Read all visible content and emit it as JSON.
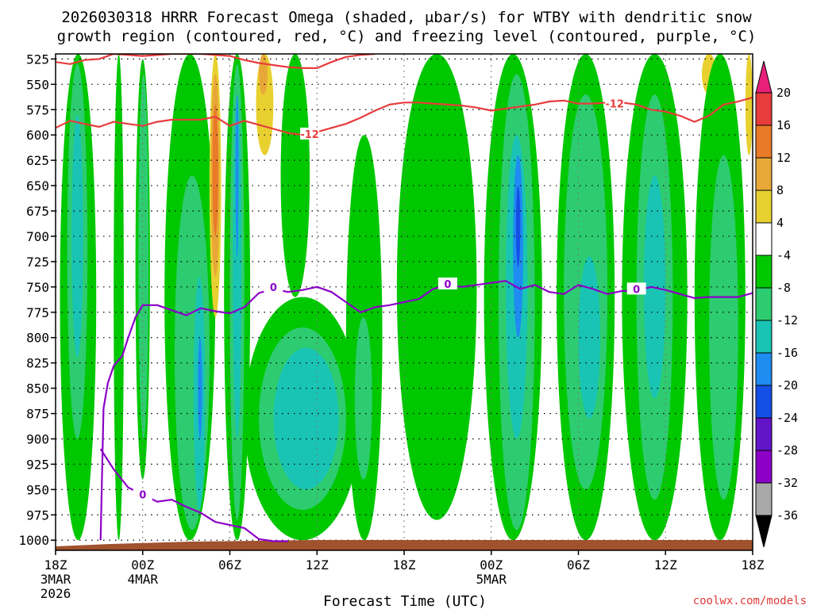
{
  "chart_data": {
    "type": "contour",
    "title_line1": "2026030318 HRRR Forecast Omega (shaded, μbar/s) for WTBY with dendritic snow",
    "title_line2": "growth region (contoured, red, °C) and freezing level (contoured, purple, °C)",
    "xlabel": "Forecast Time (UTC)",
    "credit": "coolwx.com/models",
    "y_axis": {
      "units": "hPa",
      "ticks": [
        525,
        550,
        575,
        600,
        625,
        650,
        675,
        700,
        725,
        750,
        775,
        800,
        825,
        850,
        875,
        900,
        925,
        950,
        975,
        1000
      ],
      "range": [
        520,
        1010
      ]
    },
    "x_axis": {
      "range_hours": [
        0,
        48
      ],
      "ticks": [
        {
          "hour": 0,
          "label": "18Z",
          "sub1": "3MAR",
          "sub2": "2026"
        },
        {
          "hour": 6,
          "label": "00Z",
          "sub1": "4MAR",
          "sub2": ""
        },
        {
          "hour": 12,
          "label": "06Z",
          "sub1": "",
          "sub2": ""
        },
        {
          "hour": 18,
          "label": "12Z",
          "sub1": "",
          "sub2": ""
        },
        {
          "hour": 24,
          "label": "18Z",
          "sub1": "",
          "sub2": ""
        },
        {
          "hour": 30,
          "label": "00Z",
          "sub1": "5MAR",
          "sub2": ""
        },
        {
          "hour": 36,
          "label": "06Z",
          "sub1": "",
          "sub2": ""
        },
        {
          "hour": 42,
          "label": "12Z",
          "sub1": "",
          "sub2": ""
        },
        {
          "hour": 48,
          "label": "18Z",
          "sub1": "",
          "sub2": ""
        }
      ]
    },
    "colorbar": {
      "labels": [
        "20",
        "16",
        "12",
        "8",
        "4",
        "-4",
        "-8",
        "-12",
        "-16",
        "-20",
        "-24",
        "-28",
        "-32",
        "-36"
      ],
      "colors": [
        "#e8207a",
        "#e83c3c",
        "#e87a28",
        "#e8a838",
        "#e8d030",
        "#ffffff",
        "#00c800",
        "#2ecc70",
        "#19c4b4",
        "#1e8cf0",
        "#1450e6",
        "#6414c8",
        "#8c00c8",
        "#a8a8a8",
        "#000000"
      ]
    },
    "contour_labels": {
      "dgz_top_label": "-12",
      "dgz_bottom_label": "-12",
      "freezing_label": "0"
    },
    "dgz_upper_contour": [
      [
        0,
        528
      ],
      [
        1,
        530
      ],
      [
        2,
        526
      ],
      [
        3,
        525
      ],
      [
        4,
        520
      ],
      [
        5,
        521
      ],
      [
        6,
        522
      ],
      [
        8,
        520
      ],
      [
        10,
        520
      ],
      [
        12,
        522
      ],
      [
        13,
        526
      ],
      [
        14,
        529
      ],
      [
        15,
        531
      ],
      [
        16,
        533
      ],
      [
        17,
        534
      ],
      [
        18,
        534
      ],
      [
        19,
        528
      ],
      [
        20,
        523
      ],
      [
        21,
        521
      ],
      [
        22,
        520
      ]
    ],
    "dgz_lower_contour": [
      [
        0,
        593
      ],
      [
        1,
        586
      ],
      [
        2,
        589
      ],
      [
        3,
        592
      ],
      [
        4,
        587
      ],
      [
        5,
        589
      ],
      [
        6,
        591
      ],
      [
        7,
        587
      ],
      [
        8,
        585
      ],
      [
        10,
        585
      ],
      [
        11,
        582
      ],
      [
        12,
        591
      ],
      [
        13,
        586
      ],
      [
        14,
        590
      ],
      [
        15,
        594
      ],
      [
        16,
        598
      ],
      [
        17,
        600
      ],
      [
        18,
        597
      ],
      [
        19,
        593
      ],
      [
        20,
        589
      ],
      [
        21,
        583
      ],
      [
        22,
        576
      ],
      [
        23,
        570
      ],
      [
        24,
        568
      ],
      [
        25,
        568
      ],
      [
        26,
        569
      ],
      [
        27,
        570
      ],
      [
        28,
        571
      ],
      [
        29,
        573
      ],
      [
        30,
        576
      ],
      [
        31,
        574
      ],
      [
        32,
        572
      ],
      [
        33,
        570
      ],
      [
        34,
        567
      ],
      [
        35,
        566
      ],
      [
        36,
        569
      ],
      [
        37,
        569
      ],
      [
        38,
        568
      ],
      [
        39,
        568
      ],
      [
        40,
        570
      ],
      [
        41,
        575
      ],
      [
        42,
        577
      ],
      [
        43,
        581
      ],
      [
        44,
        587
      ],
      [
        45,
        581
      ],
      [
        46,
        570
      ],
      [
        47,
        567
      ],
      [
        48,
        563
      ]
    ],
    "freezing_level_contour": [
      [
        3.1,
        1000
      ],
      [
        3.3,
        870
      ],
      [
        3.6,
        845
      ],
      [
        4.0,
        828
      ],
      [
        4.6,
        818
      ],
      [
        5.0,
        800
      ],
      [
        5.5,
        780
      ],
      [
        6.0,
        768
      ],
      [
        7.0,
        768
      ],
      [
        8.0,
        773
      ],
      [
        9.0,
        778
      ],
      [
        10.0,
        771
      ],
      [
        11.0,
        774
      ],
      [
        12.0,
        776
      ],
      [
        13.0,
        770
      ],
      [
        14.0,
        756
      ],
      [
        15.0,
        752
      ],
      [
        16.0,
        755
      ],
      [
        17.0,
        753
      ],
      [
        18.0,
        750
      ],
      [
        19.0,
        755
      ],
      [
        20.0,
        765
      ],
      [
        21.0,
        775
      ],
      [
        22.0,
        770
      ],
      [
        23.0,
        768
      ],
      [
        24.0,
        765
      ],
      [
        25.0,
        762
      ],
      [
        26.0,
        752
      ],
      [
        27.0,
        748
      ],
      [
        28.0,
        750
      ],
      [
        29.0,
        748
      ],
      [
        30.0,
        746
      ],
      [
        31.0,
        744
      ],
      [
        32.0,
        752
      ],
      [
        33.0,
        748
      ],
      [
        34.0,
        755
      ],
      [
        35.0,
        757
      ],
      [
        36.0,
        748
      ],
      [
        37.0,
        752
      ],
      [
        38.0,
        757
      ],
      [
        39.0,
        754
      ],
      [
        40.0,
        754
      ],
      [
        41.0,
        750
      ],
      [
        42.0,
        753
      ],
      [
        43.0,
        757
      ],
      [
        44.0,
        761
      ],
      [
        45.0,
        760
      ],
      [
        46.0,
        760
      ],
      [
        47.0,
        760
      ],
      [
        48.0,
        756
      ]
    ],
    "freezing_level_low_branch": [
      [
        3.1,
        910
      ],
      [
        4.0,
        930
      ],
      [
        5.0,
        948
      ],
      [
        6.0,
        955
      ],
      [
        7.0,
        962
      ],
      [
        8.0,
        960
      ],
      [
        9.0,
        967
      ],
      [
        10.0,
        973
      ],
      [
        11.0,
        982
      ],
      [
        12.0,
        985
      ],
      [
        13.0,
        988
      ],
      [
        14.0,
        999
      ],
      [
        15.0,
        1001
      ],
      [
        16.0,
        1001
      ]
    ],
    "omega_regions": [
      {
        "level": "-4",
        "hours": [
          0.3,
          2.8
        ],
        "p": [
          520,
          1000
        ]
      },
      {
        "level": "-8",
        "hours": [
          0.8,
          2.2
        ],
        "p": [
          530,
          900
        ]
      },
      {
        "level": "-12",
        "hours": [
          1.1,
          1.9
        ],
        "p": [
          580,
          820
        ]
      },
      {
        "level": "-4",
        "hours": [
          4.0,
          4.7
        ],
        "p": [
          520,
          1000
        ]
      },
      {
        "level": "-4",
        "hours": [
          5.5,
          6.5
        ],
        "p": [
          525,
          940
        ]
      },
      {
        "level": "-8",
        "hours": [
          5.7,
          6.4
        ],
        "p": [
          540,
          900
        ]
      },
      {
        "level": "-4",
        "hours": [
          7.5,
          11.0
        ],
        "p": [
          520,
          1000
        ]
      },
      {
        "level": "-8",
        "hours": [
          8.2,
          10.6
        ],
        "p": [
          640,
          990
        ]
      },
      {
        "level": "-12",
        "hours": [
          9.5,
          10.3
        ],
        "p": [
          740,
          970
        ]
      },
      {
        "level": "-16",
        "hours": [
          9.8,
          10.1
        ],
        "p": [
          800,
          900
        ]
      },
      {
        "level": "4",
        "hours": [
          10.6,
          11.4
        ],
        "p": [
          520,
          780
        ]
      },
      {
        "level": "8",
        "hours": [
          10.7,
          11.3
        ],
        "p": [
          540,
          740
        ]
      },
      {
        "level": "12",
        "hours": [
          10.8,
          11.2
        ],
        "p": [
          570,
          700
        ]
      },
      {
        "level": "-4",
        "hours": [
          11.6,
          13.4
        ],
        "p": [
          520,
          1000
        ]
      },
      {
        "level": "-8",
        "hours": [
          12.0,
          13.0
        ],
        "p": [
          530,
          980
        ]
      },
      {
        "level": "-12",
        "hours": [
          12.2,
          12.8
        ],
        "p": [
          560,
          900
        ]
      },
      {
        "level": "-16",
        "hours": [
          12.4,
          12.6
        ],
        "p": [
          560,
          720
        ]
      },
      {
        "level": "4",
        "hours": [
          13.8,
          15.0
        ],
        "p": [
          520,
          620
        ]
      },
      {
        "level": "8",
        "hours": [
          14.0,
          14.6
        ],
        "p": [
          520,
          560
        ]
      },
      {
        "level": "-4",
        "hours": [
          13.0,
          21.0
        ],
        "p": [
          760,
          1000
        ]
      },
      {
        "level": "-8",
        "hours": [
          14.0,
          20.0
        ],
        "p": [
          790,
          970
        ]
      },
      {
        "level": "-12",
        "hours": [
          15.0,
          19.5
        ],
        "p": [
          810,
          950
        ]
      },
      {
        "level": "-4",
        "hours": [
          15.5,
          17.5
        ],
        "p": [
          520,
          760
        ]
      },
      {
        "level": "-4",
        "hours": [
          20.0,
          22.5
        ],
        "p": [
          600,
          1000
        ]
      },
      {
        "level": "-8",
        "hours": [
          20.6,
          21.8
        ],
        "p": [
          780,
          940
        ]
      },
      {
        "level": "-4",
        "hours": [
          23.5,
          29.0
        ],
        "p": [
          520,
          980
        ]
      },
      {
        "level": "-4",
        "hours": [
          29.5,
          33.5
        ],
        "p": [
          520,
          1000
        ]
      },
      {
        "level": "-8",
        "hours": [
          30.5,
          33.0
        ],
        "p": [
          540,
          990
        ]
      },
      {
        "level": "-12",
        "hours": [
          31.0,
          32.5
        ],
        "p": [
          600,
          900
        ]
      },
      {
        "level": "-16",
        "hours": [
          31.5,
          32.2
        ],
        "p": [
          620,
          800
        ]
      },
      {
        "level": "-20",
        "hours": [
          31.7,
          32.0
        ],
        "p": [
          650,
          730
        ]
      },
      {
        "level": "-4",
        "hours": [
          34.5,
          38.5
        ],
        "p": [
          520,
          1000
        ]
      },
      {
        "level": "-8",
        "hours": [
          35.0,
          38.0
        ],
        "p": [
          560,
          950
        ]
      },
      {
        "level": "-12",
        "hours": [
          36.0,
          37.5
        ],
        "p": [
          720,
          880
        ]
      },
      {
        "level": "-4",
        "hours": [
          39.0,
          43.5
        ],
        "p": [
          520,
          1000
        ]
      },
      {
        "level": "-8",
        "hours": [
          40.0,
          42.5
        ],
        "p": [
          560,
          960
        ]
      },
      {
        "level": "-12",
        "hours": [
          40.5,
          42.0
        ],
        "p": [
          640,
          860
        ]
      },
      {
        "level": "4",
        "hours": [
          44.5,
          45.5
        ],
        "p": [
          520,
          560
        ]
      },
      {
        "level": "-4",
        "hours": [
          44.0,
          47.5
        ],
        "p": [
          520,
          1000
        ]
      },
      {
        "level": "-8",
        "hours": [
          45.0,
          47.0
        ],
        "p": [
          620,
          960
        ]
      },
      {
        "level": "4",
        "hours": [
          47.5,
          48.0
        ],
        "p": [
          520,
          620
        ]
      }
    ]
  }
}
